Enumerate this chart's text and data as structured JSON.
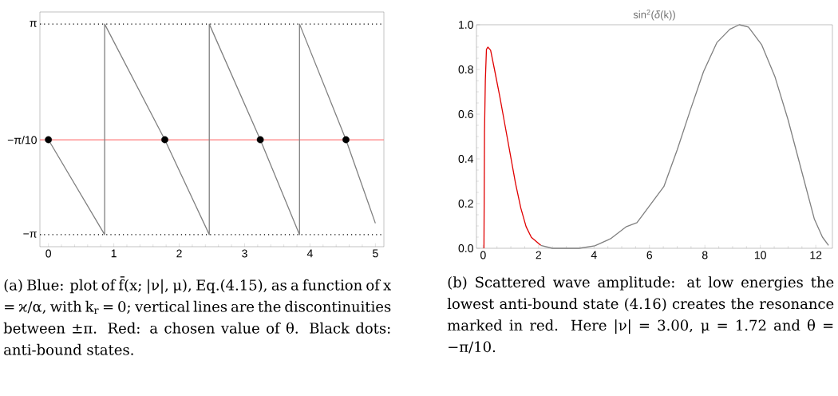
{
  "chart_data": [
    {
      "type": "line",
      "xlim": [
        -0.13,
        5.13
      ],
      "ylim": [
        -3.5,
        3.5
      ],
      "xticks": [
        0,
        1,
        2,
        3,
        4,
        5
      ],
      "yticks": [
        {
          "value": 3.14159,
          "label": "π"
        },
        {
          "value": -0.314159,
          "label": "−π/10"
        },
        {
          "value": -3.14159,
          "label": "−π"
        }
      ],
      "series": [
        {
          "color": "#808080",
          "x": [
            0,
            0.86,
            0.86,
            1.78,
            2.46,
            2.46,
            3.24,
            3.84,
            3.84,
            4.55,
            5
          ],
          "values": [
            -0.31,
            -3.14,
            3.14,
            -0.31,
            -3.14,
            3.14,
            -0.31,
            -3.14,
            3.14,
            -0.31,
            -2.8
          ]
        },
        {
          "type": "scatter",
          "marker": "circle",
          "color": "#000000",
          "x": [
            0,
            1.78,
            3.24,
            4.55
          ],
          "values": [
            -0.31,
            -0.31,
            -0.31,
            -0.31
          ]
        }
      ],
      "ref_lines": [
        {
          "axis": "y",
          "value": -0.314159,
          "color": "#ff8080"
        },
        {
          "axis": "y",
          "value": 3.14159,
          "color": "#000000",
          "line_style": "dotted"
        },
        {
          "axis": "y",
          "value": -3.14159,
          "color": "#000000",
          "line_style": "dotted"
        }
      ],
      "annotations": [
        "(a) Blue: plot of f̄(x; |ν|, μ), Eq.(4.15), as a function of x = ϰ/α, with k$_{r}$ = 0; vertical lines are the discontinuities between ±π. Red: a chosen value of θ. Black dots: anti-bound states."
      ]
    },
    {
      "type": "line",
      "title": "sin$^{2}$(*δ*(k))",
      "xlim": [
        -0.24,
        12.6
      ],
      "ylim": [
        0,
        1
      ],
      "xticks": [
        0,
        2,
        4,
        6,
        8,
        10,
        12
      ],
      "yticks": [
        {
          "value": 0,
          "label": "0.0"
        },
        {
          "value": 0.2,
          "label": "0.2"
        },
        {
          "value": 0.4,
          "label": "0.4"
        },
        {
          "value": 0.6,
          "label": "0.6"
        },
        {
          "value": 0.8,
          "label": "0.8"
        },
        {
          "value": 1,
          "label": "1.0"
        }
      ],
      "series": [
        {
          "color": "#e00000",
          "x": [
            0.03,
            0.05,
            0.08,
            0.12,
            0.17,
            0.27,
            0.41,
            0.6,
            0.79,
            0.98,
            1.17,
            1.36,
            1.55,
            1.74,
            2.08
          ],
          "values": [
            0,
            0.52,
            0.75,
            0.89,
            0.9,
            0.886,
            0.8,
            0.68,
            0.55,
            0.42,
            0.29,
            0.18,
            0.097,
            0.049,
            0.013
          ]
        },
        {
          "color": "#808080",
          "x": [
            2.08,
            2.5,
            3.46,
            4.03,
            4.6,
            5.17,
            5.55,
            6.52,
            7.0,
            7.48,
            7.95,
            8.43,
            8.9,
            9.24,
            9.57,
            10.05,
            10.52,
            11.0,
            11.48,
            11.95,
            12.24,
            12.46
          ],
          "values": [
            0.013,
            0,
            0,
            0.011,
            0.043,
            0.097,
            0.115,
            0.276,
            0.44,
            0.62,
            0.79,
            0.92,
            0.98,
            1.0,
            0.99,
            0.91,
            0.77,
            0.575,
            0.35,
            0.13,
            0.05,
            0.013
          ]
        }
      ],
      "annotations": [
        "(b) Scattered wave amplitude: at low energies the lowest anti-bound state (4.16) creates the resonance marked in red. Here |ν| = 3.00, μ = 1.72 and θ = −π/10."
      ]
    }
  ]
}
